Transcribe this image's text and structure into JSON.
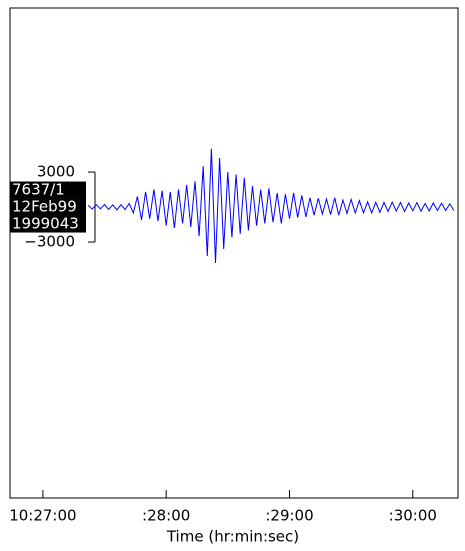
{
  "chart_data": {
    "type": "line",
    "x_label": "Time (hr:min:sec)",
    "trace_labels": [
      "7637/1",
      "12Feb99",
      "1999043"
    ],
    "x": [
      22,
      24,
      26,
      28,
      30,
      32,
      34,
      36,
      38,
      40,
      42,
      44,
      46,
      48,
      50,
      52,
      54,
      56,
      58,
      60,
      62,
      64,
      66,
      68,
      70,
      72,
      74,
      76,
      78,
      80,
      82,
      84,
      86,
      88,
      90,
      92,
      94,
      96,
      98,
      100,
      102,
      104,
      106,
      108,
      110,
      112,
      114,
      116,
      118,
      120,
      122,
      124,
      126,
      128,
      130,
      132,
      134,
      136,
      138,
      140,
      142,
      144,
      146,
      148,
      150,
      152,
      154,
      156,
      158,
      160,
      162,
      164,
      166,
      168,
      170,
      172,
      174,
      176,
      178,
      180,
      182,
      184,
      186,
      188,
      190,
      192,
      194,
      196,
      198,
      200
    ],
    "series": [
      {
        "color": "#0000ff",
        "values": [
          150,
          -180,
          200,
          -150,
          220,
          -200,
          180,
          -250,
          200,
          -220,
          300,
          -500,
          900,
          -1100,
          1300,
          -1000,
          1500,
          -1200,
          1400,
          -1600,
          1300,
          -1800,
          1500,
          -1400,
          1900,
          -1700,
          2200,
          -2500,
          3500,
          -4200,
          5000,
          -4800,
          4200,
          -3600,
          3000,
          -2600,
          2800,
          -2300,
          2500,
          -2000,
          1800,
          -1600,
          1500,
          -1400,
          1600,
          -1300,
          1200,
          -1400,
          1100,
          -1000,
          1200,
          -900,
          1000,
          -850,
          800,
          -700,
          750,
          -600,
          700,
          -650,
          800,
          -700,
          600,
          -550,
          650,
          -500,
          550,
          -500,
          450,
          -500,
          400,
          -450,
          400,
          -380,
          420,
          -350,
          400,
          -380,
          350,
          -320,
          380,
          -350,
          300,
          -330,
          350,
          -300,
          320,
          -300,
          280,
          -300
        ]
      }
    ],
    "xlim": [
      -16,
      202
    ],
    "xticks": [
      {
        "value": 0,
        "label": "10:27:00"
      },
      {
        "value": 60,
        "label": ":28:00"
      },
      {
        "value": 120,
        "label": ":29:00"
      },
      {
        "value": 180,
        "label": ":30:00"
      }
    ],
    "ylim": [
      -24940,
      17060
    ],
    "yticks": [
      3000,
      {
        "value": -3000,
        "label": "−3000"
      }
    ]
  }
}
